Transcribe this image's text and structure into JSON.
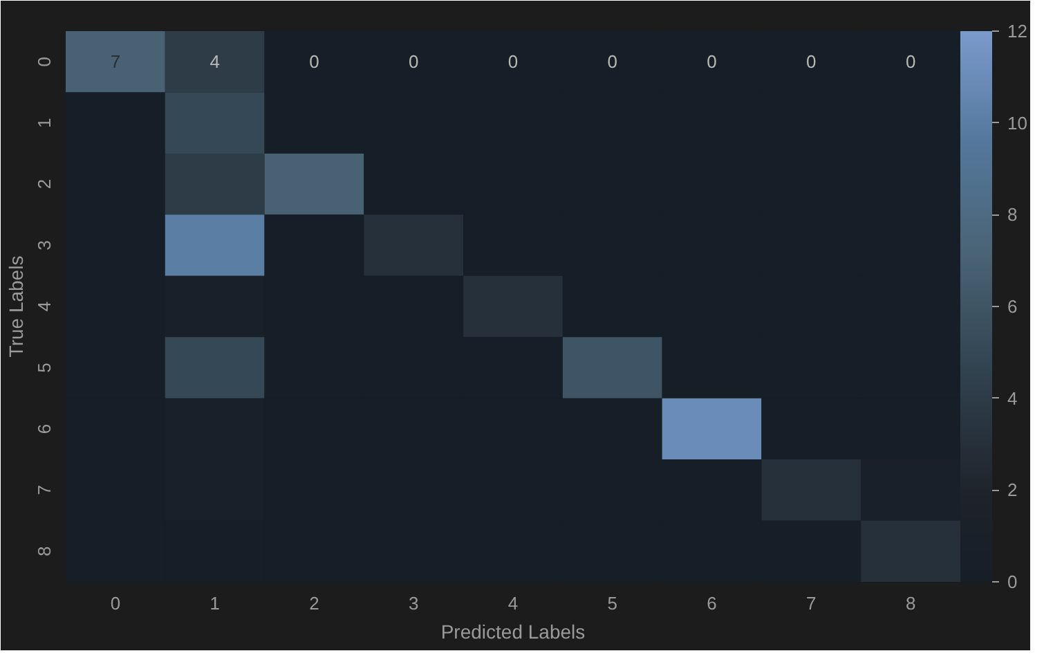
{
  "chart_data": {
    "type": "heatmap",
    "xlabel": "Predicted Labels",
    "ylabel": "True Labels",
    "categories": [
      "0",
      "1",
      "2",
      "3",
      "4",
      "5",
      "6",
      "7",
      "8"
    ],
    "y_categories": [
      "0",
      "1",
      "2",
      "3",
      "4",
      "5",
      "6",
      "7",
      "8"
    ],
    "cells": [
      [
        7,
        4,
        0,
        0,
        0,
        0,
        0,
        0,
        0
      ],
      [
        0,
        5,
        0,
        0,
        0,
        0,
        0,
        0,
        0
      ],
      [
        0,
        4,
        7,
        0,
        0,
        0,
        0,
        0,
        0
      ],
      [
        0,
        10,
        0,
        3,
        0,
        0,
        0,
        0,
        0
      ],
      [
        0,
        1,
        0,
        0,
        3,
        0,
        0,
        0,
        0
      ],
      [
        0,
        5,
        0,
        0,
        0,
        6,
        0,
        0,
        0
      ],
      [
        0,
        1,
        0,
        0,
        0,
        0,
        11,
        0,
        0
      ],
      [
        0,
        1,
        0,
        0,
        0,
        0,
        0,
        3,
        1
      ],
      [
        0,
        0,
        0,
        0,
        0,
        0,
        0,
        0,
        3
      ]
    ],
    "cell_labels": [
      [
        "7",
        "4",
        "0",
        "0",
        "0",
        "0",
        "0",
        "0",
        "0"
      ],
      [
        null,
        null,
        null,
        null,
        null,
        null,
        null,
        null,
        null
      ],
      [
        null,
        null,
        null,
        null,
        null,
        null,
        null,
        null,
        null
      ],
      [
        null,
        null,
        null,
        null,
        null,
        null,
        null,
        null,
        null
      ],
      [
        null,
        null,
        null,
        null,
        null,
        null,
        null,
        null,
        null
      ],
      [
        null,
        null,
        null,
        null,
        null,
        null,
        null,
        null,
        null
      ],
      [
        null,
        null,
        null,
        null,
        null,
        null,
        null,
        null,
        null
      ],
      [
        null,
        null,
        null,
        null,
        null,
        null,
        null,
        null,
        null
      ],
      [
        null,
        null,
        null,
        null,
        null,
        null,
        null,
        null,
        null
      ]
    ],
    "clim": [
      0,
      12
    ],
    "cticks": [
      0,
      2,
      4,
      6,
      8,
      10,
      12
    ]
  }
}
